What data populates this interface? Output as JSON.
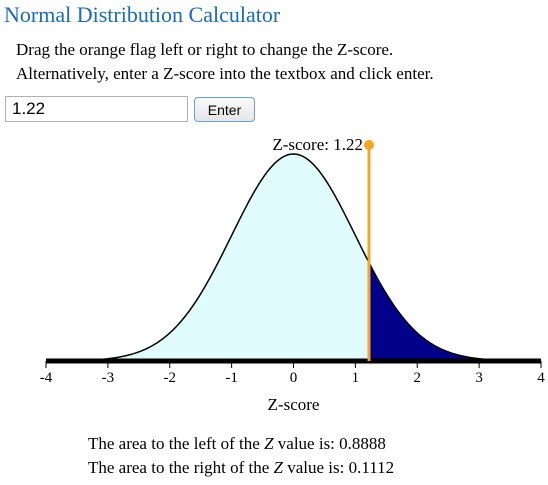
{
  "app": {
    "title": "Normal Distribution Calculator"
  },
  "instructions": {
    "line1": "Drag the orange flag left or right to change the Z-score.",
    "line2": "Alternatively, enter a Z-score into the textbox and click enter."
  },
  "input": {
    "value": "1.22",
    "button_label": "Enter"
  },
  "flag": {
    "label_prefix": "Z-score: ",
    "z": 1.22,
    "color": "#f5a623"
  },
  "colors": {
    "title": "#1a6ab5",
    "left_fill": "#e0fcfc",
    "right_fill": "#00008b",
    "flag": "#f5a623",
    "axis": "#000000"
  },
  "chart_data": {
    "type": "area",
    "distribution": "standard normal",
    "mean": 0,
    "sd": 1,
    "z": 1.22,
    "xlim": [
      -4,
      4
    ],
    "ticks": [
      -4,
      -3,
      -2,
      -1,
      0,
      1,
      2,
      3,
      4
    ],
    "tick_labels": [
      "-4",
      "-3",
      "-2",
      "-1",
      "0",
      "1",
      "2",
      "3",
      "4"
    ],
    "xlabel": "Z-score",
    "left_area": 0.8888,
    "right_area": 0.1112
  },
  "results": {
    "left_prefix": "The area to the left of the ",
    "right_prefix": "The area to the right of the ",
    "z_symbol": "Z",
    "suffix": " value is: ",
    "left_value": "0.8888",
    "right_value": "0.1112"
  }
}
